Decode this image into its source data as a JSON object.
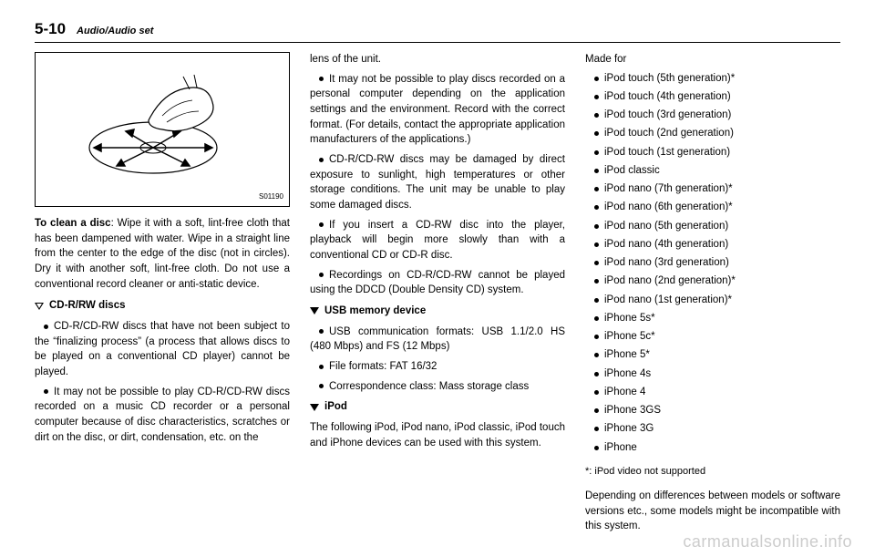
{
  "header": {
    "pageNumber": "5-10",
    "sectionTitle": "Audio/Audio set"
  },
  "figure": {
    "code": "S01190"
  },
  "col1": {
    "cleanDiscBold": "To clean a disc",
    "cleanDiscText": ": Wipe it with a soft, lint-free cloth that has been dampened with water. Wipe in a straight line from the center to the edge of the disc (not in circles). Dry it with another soft, lint-free cloth. Do not use a conventional record cleaner or anti-static device.",
    "cdrwHeading": "CD-R/RW discs",
    "b1": "CD-R/CD-RW discs that have not been subject to the “finalizing process” (a process that allows discs to be played on a conventional CD player) cannot be played.",
    "b2": "It may not be possible to play CD-R/CD-RW discs recorded on a music CD recorder or a personal computer because of disc characteristics, scratches or dirt on the disc, or dirt, condensation, etc. on the"
  },
  "col2": {
    "lensText": "lens of the unit.",
    "b1": "It may not be possible to play discs recorded on a personal computer depending on the application settings and the environment. Record with the correct format. (For details, contact the appropriate application manufacturers of the applications.)",
    "b2": "CD-R/CD-RW discs may be damaged by direct exposure to sunlight, high temperatures or other storage conditions. The unit may be unable to play some damaged discs.",
    "b3": "If you insert a CD-RW disc into the player, playback will begin more slowly than with a conventional CD or CD-R disc.",
    "b4": "Recordings on CD-R/CD-RW cannot be played using the DDCD (Double Density CD) system.",
    "usbHeading": "USB memory device",
    "usb1": "USB communication formats: USB 1.1/2.0 HS (480 Mbps) and FS (12 Mbps)",
    "usb2": "File formats: FAT 16/32",
    "usb3": "Correspondence class: Mass storage class",
    "ipodHeading": "iPod",
    "ipodText": "The following iPod, iPod nano, iPod classic, iPod touch and iPhone devices can be used with this system."
  },
  "col3": {
    "madeFor": "Made for",
    "devices": [
      "iPod touch (5th generation)*",
      "iPod touch (4th generation)",
      "iPod touch (3rd generation)",
      "iPod touch (2nd generation)",
      "iPod touch (1st generation)",
      "iPod classic",
      "iPod nano (7th generation)*",
      "iPod nano (6th generation)*",
      "iPod nano (5th generation)",
      "iPod nano (4th generation)",
      "iPod nano (3rd generation)",
      "iPod nano (2nd generation)*",
      "iPod nano (1st generation)*",
      "iPhone 5s*",
      "iPhone 5c*",
      "iPhone 5*",
      "iPhone 4s",
      "iPhone 4",
      "iPhone 3GS",
      "iPhone 3G",
      "iPhone"
    ],
    "footnote": "*: iPod video not supported",
    "closingText": "Depending on differences between models or software versions etc., some models might be incompatible with this system."
  },
  "watermark": "carmanualsonline.info"
}
